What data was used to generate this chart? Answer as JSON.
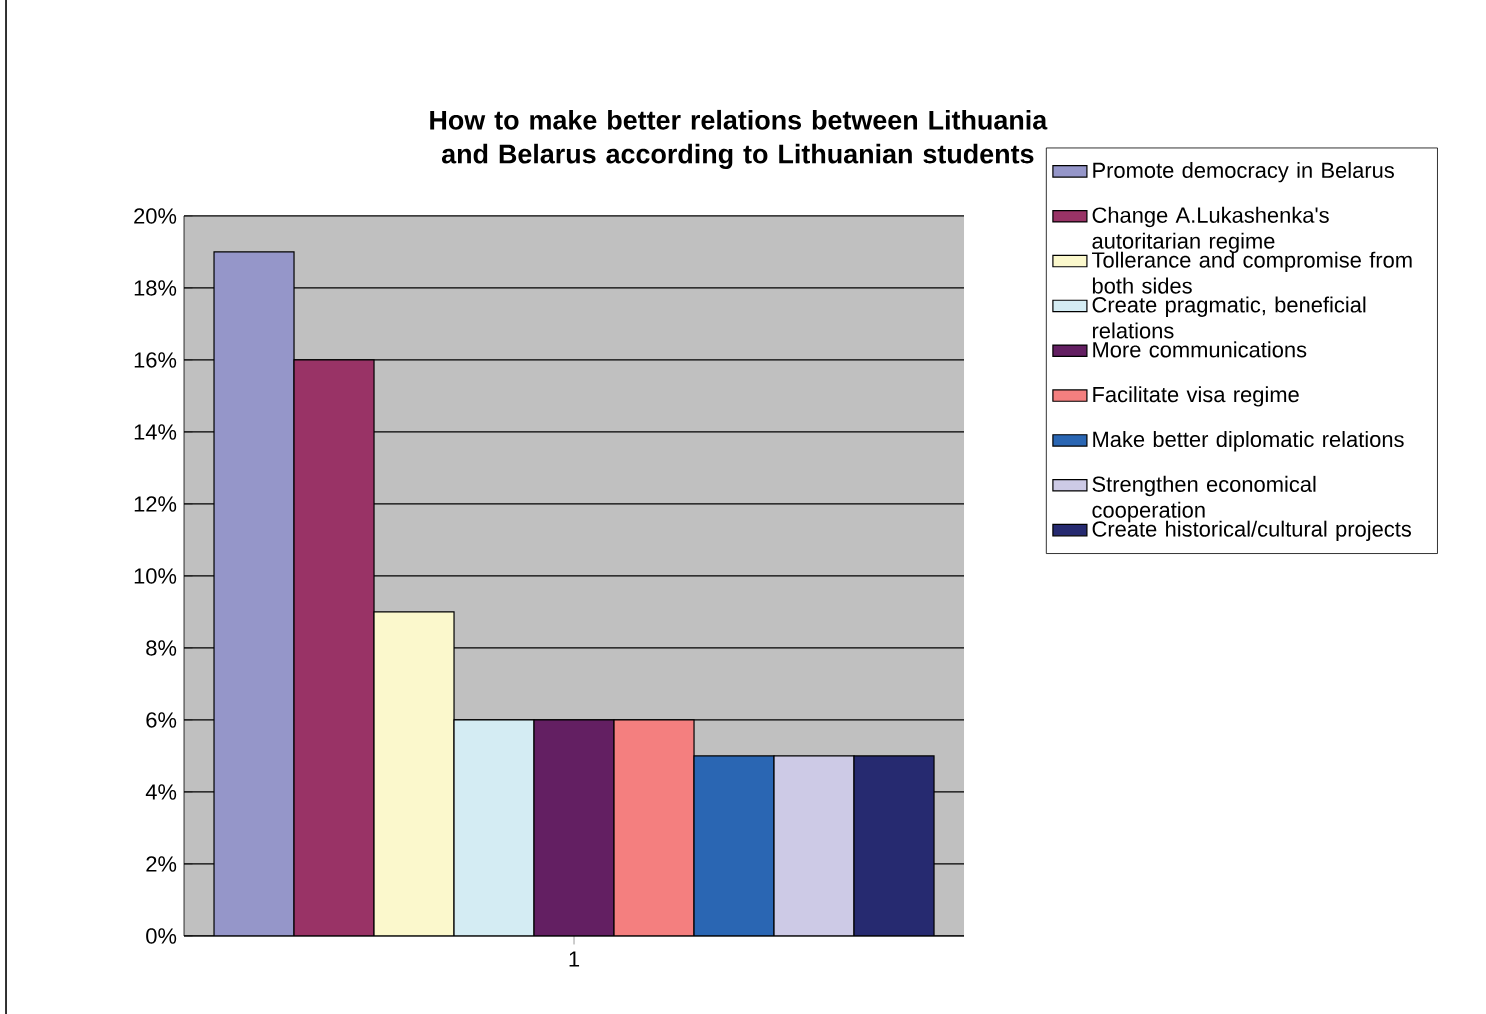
{
  "chart_data": {
    "type": "bar",
    "title": "How to make better relations between Lithuania and Belarus according to Lithuanian students",
    "categories": [
      "1"
    ],
    "series": [
      {
        "name": "Promote democracy in Belarus",
        "color": "#9596c9",
        "values": [
          19
        ]
      },
      {
        "name": "Change A.Lukashenka's autoritarian regime",
        "color": "#993366",
        "values": [
          16
        ]
      },
      {
        "name": "Tollerance and compromise from both sides",
        "color": "#fbf8cc",
        "values": [
          9
        ]
      },
      {
        "name": "Create pragmatic, beneficial relations",
        "color": "#d4ecf3",
        "values": [
          6
        ]
      },
      {
        "name": "More communications",
        "color": "#631f62",
        "values": [
          6
        ]
      },
      {
        "name": "Facilitate visa regime",
        "color": "#f47f7f",
        "values": [
          6
        ]
      },
      {
        "name": "Make better diplomatic relations",
        "color": "#2a66b3",
        "values": [
          5
        ]
      },
      {
        "name": "Strengthen economical cooperation",
        "color": "#cdcae6",
        "values": [
          5
        ]
      },
      {
        "name": "Create historical/cultural projects",
        "color": "#262a70",
        "values": [
          5
        ]
      }
    ],
    "ylim": [
      0,
      20
    ],
    "yticks": [
      {
        "value": 0,
        "label": "0%"
      },
      {
        "value": 2,
        "label": "2%"
      },
      {
        "value": 4,
        "label": "4%"
      },
      {
        "value": 6,
        "label": "6%"
      },
      {
        "value": 8,
        "label": "8%"
      },
      {
        "value": 10,
        "label": "10%"
      },
      {
        "value": 12,
        "label": "12%"
      },
      {
        "value": 14,
        "label": "14%"
      },
      {
        "value": 16,
        "label": "16%"
      },
      {
        "value": 18,
        "label": "18%"
      },
      {
        "value": 20,
        "label": "20%"
      }
    ],
    "grid": "y",
    "legend": "right"
  }
}
